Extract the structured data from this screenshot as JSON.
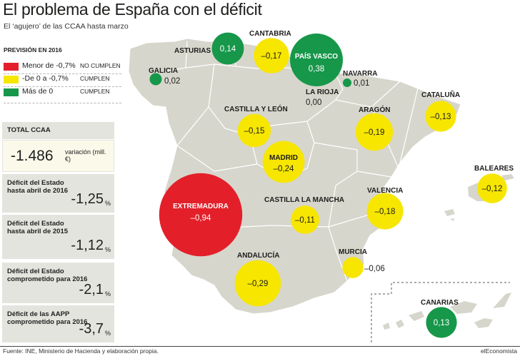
{
  "title": "El problema de España con el déficit",
  "subtitle": "El ‘agujero’ de las CCAA hasta marzo",
  "legend": {
    "title": "PREVISIÓN EN 2016",
    "items": [
      {
        "label": "Menor de -0,7%",
        "status": "NO CUMPLEN",
        "color": "#e3202a"
      },
      {
        "label": "-De 0 a -0,7%",
        "status": "CUMPLEN",
        "color": "#f7e600"
      },
      {
        "label": "Más de 0",
        "status": "CUMPLEN",
        "color": "#16974a"
      }
    ]
  },
  "total": {
    "label": "TOTAL CCAA",
    "value": "-1.486",
    "unit": "variación (mill. €)"
  },
  "panels": [
    {
      "label": "Déficit del Estado\nhasta abril de 2016",
      "value": "-1,25",
      "unit": "%"
    },
    {
      "label": "Déficit del Estado\nhasta abril de 2015",
      "value": "-1,12",
      "unit": "%"
    },
    {
      "label": "Déficit del Estado\ncomprometido para 2016",
      "value": "-2,1",
      "unit": "%"
    },
    {
      "label": "Déficit de las AAPP\ncomprometido para 2016",
      "value": "-3,7",
      "unit": "%"
    }
  ],
  "chart_data": {
    "type": "bubble-map",
    "title": "El problema de España con el déficit",
    "subtitle": "El ‘agujero’ de las CCAA hasta marzo",
    "unit": "%",
    "series": [
      {
        "name": "Asturias",
        "label": "ASTURIAS",
        "value": 0.14,
        "value_text": "0,14",
        "category": "Más de 0"
      },
      {
        "name": "Cantabria",
        "label": "CANTABRIA",
        "value": -0.17,
        "value_text": "–0,17",
        "category": "-De 0 a -0,7%"
      },
      {
        "name": "País Vasco",
        "label": "PAÍS VASCO",
        "value": 0.38,
        "value_text": "0,38",
        "category": "Más de 0"
      },
      {
        "name": "Galicia",
        "label": "GALICIA",
        "value": 0.02,
        "value_text": "0,02",
        "category": "Más de 0"
      },
      {
        "name": "Navarra",
        "label": "NAVARRA",
        "value": 0.01,
        "value_text": "0,01",
        "category": "Más de 0"
      },
      {
        "name": "La Rioja",
        "label": "LA RIOJA",
        "value": 0.0,
        "value_text": "0,00",
        "category": "none"
      },
      {
        "name": "Cataluña",
        "label": "CATALUÑA",
        "value": -0.13,
        "value_text": "–0,13",
        "category": "-De 0 a -0,7%"
      },
      {
        "name": "Castilla y León",
        "label": "CASTILLA Y LEÓN",
        "value": -0.15,
        "value_text": "–0,15",
        "category": "-De 0 a -0,7%"
      },
      {
        "name": "Aragón",
        "label": "ARAGÓN",
        "value": -0.19,
        "value_text": "–0,19",
        "category": "-De 0 a -0,7%"
      },
      {
        "name": "Madrid",
        "label": "MADRID",
        "value": -0.24,
        "value_text": "–0,24",
        "category": "-De 0 a -0,7%"
      },
      {
        "name": "Baleares",
        "label": "BALEARES",
        "value": -0.12,
        "value_text": "–0,12",
        "category": "-De 0 a -0,7%"
      },
      {
        "name": "Extremadura",
        "label": "EXTREMADURA",
        "value": -0.94,
        "value_text": "–0,94",
        "category": "Menor de -0,7%"
      },
      {
        "name": "Castilla La Mancha",
        "label": "CASTILLA LA MANCHA",
        "value": -0.11,
        "value_text": "–0,11",
        "category": "-De 0 a -0,7%"
      },
      {
        "name": "Valencia",
        "label": "VALENCIA",
        "value": -0.18,
        "value_text": "–0,18",
        "category": "-De 0 a -0,7%"
      },
      {
        "name": "Murcia",
        "label": "MURCIA",
        "value": -0.06,
        "value_text": "–0,06",
        "category": "-De 0 a -0,7%"
      },
      {
        "name": "Andalucía",
        "label": "ANDALUCÍA",
        "value": -0.29,
        "value_text": "–0,29",
        "category": "-De 0 a -0,7%"
      },
      {
        "name": "Canarias",
        "label": "CANARIAS",
        "value": 0.13,
        "value_text": "0,13",
        "category": "Más de 0"
      }
    ]
  },
  "source": "Fuente: INE, Ministerio de Hacienda y elaboración propia.",
  "brand": "elEconomista"
}
